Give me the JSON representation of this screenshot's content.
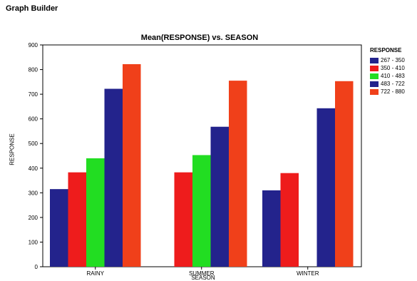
{
  "app_title": "Graph Builder",
  "chart_data": {
    "type": "bar",
    "title": "Mean(RESPONSE) vs. SEASON",
    "xlabel": "SEASON",
    "ylabel": "RESPONSE",
    "ylim": [
      0,
      900
    ],
    "yticks": [
      0,
      100,
      200,
      300,
      400,
      500,
      600,
      700,
      800,
      900
    ],
    "grid": false,
    "legend_placement": "right",
    "legend_title": "RESPONSE",
    "categories": [
      "RAINY",
      "SUMMER",
      "WINTER"
    ],
    "series": [
      {
        "name": "267 - 350",
        "color": "#23238c",
        "values": [
          315,
          null,
          310
        ]
      },
      {
        "name": "350 - 410",
        "color": "#ee1c1c",
        "values": [
          383,
          383,
          380
        ]
      },
      {
        "name": "410 - 483",
        "color": "#22dd22",
        "values": [
          440,
          453,
          null
        ]
      },
      {
        "name": "483 - 722",
        "color": "#23238c",
        "values": [
          722,
          568,
          643
        ]
      },
      {
        "name": "722 - 880",
        "color": "#f0401a",
        "values": [
          822,
          755,
          753
        ]
      }
    ]
  }
}
